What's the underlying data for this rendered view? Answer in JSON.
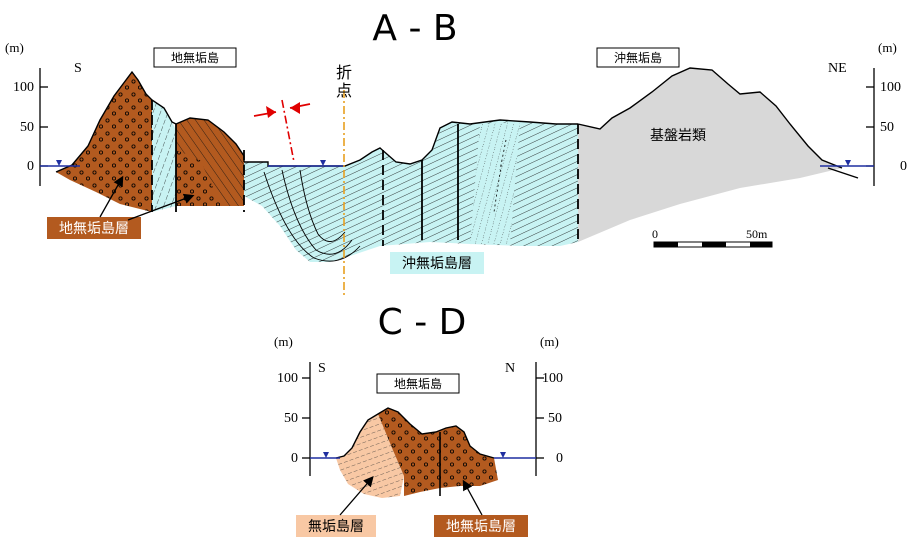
{
  "section_ab": {
    "title": "A - B",
    "unit_left": "(m)",
    "unit_right": "(m)",
    "dir_left": "S",
    "dir_right": "NE",
    "ticks_left": [
      "100",
      "50",
      "0"
    ],
    "ticks_right": [
      "100",
      "50",
      "0"
    ],
    "box_left": "地無垢島",
    "box_right": "沖無垢島",
    "fold_label_1": "折",
    "fold_label_2": "点",
    "basement_label": "基盤岩類",
    "layer_label_jimuku": "地無垢島層",
    "layer_label_okimuku": "沖無垢島層",
    "scale_start": "0",
    "scale_end": "50m"
  },
  "section_cd": {
    "title": "C - D",
    "unit_left": "(m)",
    "unit_right": "(m)",
    "dir_left": "S",
    "dir_right": "N",
    "ticks_left": [
      "100",
      "50",
      "0"
    ],
    "ticks_right": [
      "100",
      "50",
      "0"
    ],
    "box_label": "地無垢島",
    "layer_label_muku": "無垢島層",
    "layer_label_jimuku": "地無垢島層"
  },
  "colors": {
    "jimuku_layer": "#b35a1f",
    "okimuku_layer": "#c8f3f3",
    "muku_layer": "#f8c8a4",
    "basement": "#d8d8d8",
    "sea_level": "#1f2fa0",
    "fold_axis": "#e8a020",
    "syncline_marker": "#e00000"
  }
}
